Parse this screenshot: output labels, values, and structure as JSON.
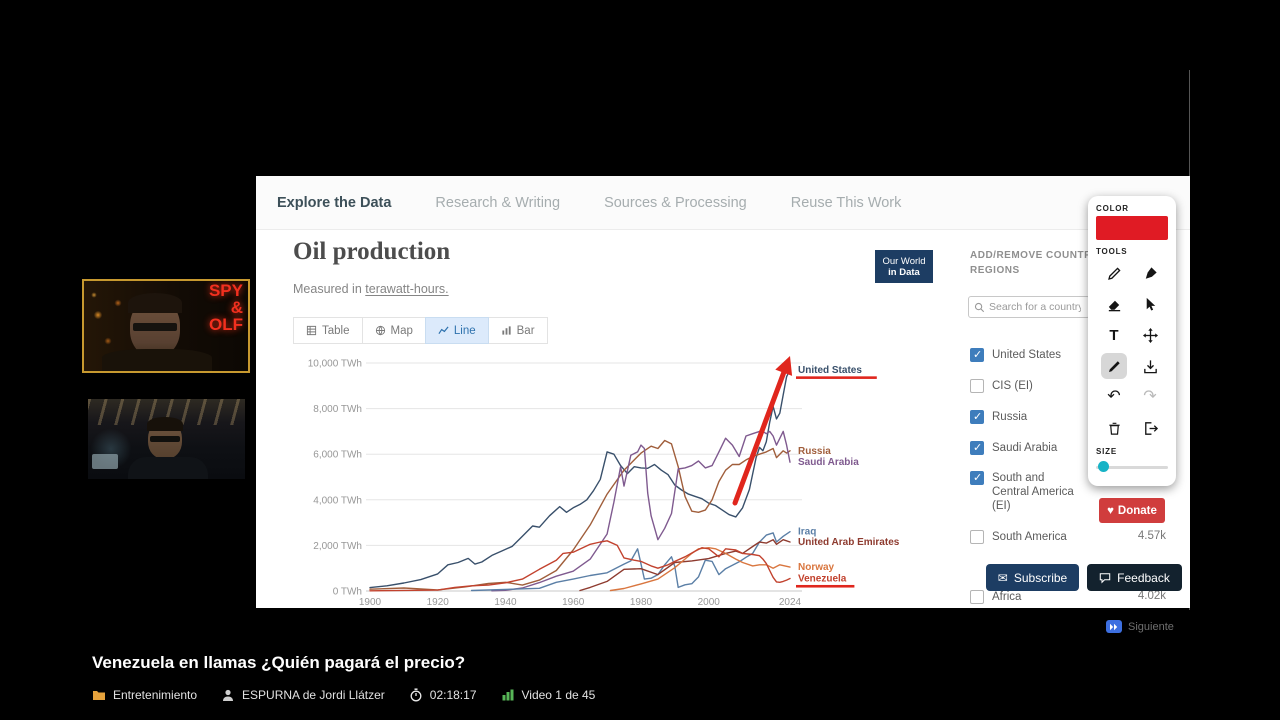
{
  "player": {
    "title": "Venezuela en llamas ¿Quién pagará el precio?",
    "next_label": "Siguiente",
    "meta": {
      "category": "Entretenimiento",
      "author": "ESPURNA de Jordi Llátzer",
      "time": "02:18:17",
      "video_index": "Video 1 de 45"
    }
  },
  "webcams": {
    "top_overlay_lines": [
      "SPY",
      "&",
      "OLF"
    ]
  },
  "owid": {
    "nav": [
      "Explore the Data",
      "Research & Writing",
      "Sources & Processing",
      "Reuse This Work"
    ],
    "title": "Oil production",
    "subtitle_prefix": "Measured in ",
    "subtitle_unit": "terawatt-hours.",
    "logo_lines": [
      "Our World",
      "in Data"
    ],
    "chart_tabs": [
      {
        "label": "Table",
        "active": false
      },
      {
        "label": "Map",
        "active": false
      },
      {
        "label": "Line",
        "active": true
      },
      {
        "label": "Bar",
        "active": false
      }
    ],
    "sidebar": {
      "header": "ADD/REMOVE COUNTRIES AND REGIONS",
      "search_placeholder": "Search for a country",
      "entities": [
        {
          "label": "United States",
          "checked": true
        },
        {
          "label": "CIS (EI)",
          "checked": false
        },
        {
          "label": "Russia",
          "checked": true
        },
        {
          "label": "Saudi Arabia",
          "checked": true
        },
        {
          "label": "South and Central America (EI)",
          "checked": true
        },
        {
          "label": "South America",
          "checked": false,
          "count": "4.57k"
        },
        {
          "label": "Africa",
          "checked": false,
          "count": "4.02k"
        }
      ],
      "donate_label": "Donate"
    },
    "footer": {
      "subscribe_label": "Subscribe",
      "feedback_label": "Feedback"
    }
  },
  "annotator": {
    "color_label": "COLOR",
    "tools_label": "TOOLS",
    "size_label": "SIZE",
    "color": "#e01b24",
    "text_tool_glyph": "T",
    "tools": [
      "pencil",
      "pen",
      "eraser",
      "cursor",
      "text",
      "move",
      "draw-line",
      "download",
      "undo",
      "redo",
      "trash",
      "exit"
    ]
  },
  "chart_data": {
    "type": "line",
    "title": "Oil production",
    "subtitle": "Measured in terawatt-hours",
    "ylabel": "TWh",
    "ylim": [
      0,
      10000
    ],
    "xlim": [
      1900,
      2024
    ],
    "yticks": [
      0,
      2000,
      4000,
      6000,
      8000,
      10000
    ],
    "ytick_labels": [
      "0 TWh",
      "2,000 TWh",
      "4,000 TWh",
      "6,000 TWh",
      "8,000 TWh",
      "10,000 TWh"
    ],
    "xticks": [
      1900,
      1920,
      1940,
      1960,
      1980,
      2000,
      2024
    ],
    "grid": true,
    "annotation": "hand-drawn red arrow pointing up along the United States surge; red underlines under United States and Venezuela labels",
    "series": [
      {
        "name": "United States",
        "color": "#39506b",
        "underline": true,
        "points": [
          [
            1900,
            150
          ],
          [
            1905,
            230
          ],
          [
            1910,
            350
          ],
          [
            1915,
            500
          ],
          [
            1920,
            750
          ],
          [
            1923,
            1150
          ],
          [
            1926,
            1250
          ],
          [
            1929,
            1430
          ],
          [
            1931,
            1180
          ],
          [
            1933,
            1270
          ],
          [
            1936,
            1560
          ],
          [
            1939,
            1760
          ],
          [
            1942,
            1960
          ],
          [
            1945,
            2400
          ],
          [
            1948,
            2850
          ],
          [
            1950,
            2800
          ],
          [
            1953,
            3300
          ],
          [
            1956,
            3700
          ],
          [
            1958,
            3450
          ],
          [
            1960,
            3650
          ],
          [
            1962,
            3800
          ],
          [
            1964,
            4000
          ],
          [
            1966,
            4400
          ],
          [
            1968,
            4900
          ],
          [
            1970,
            6100
          ],
          [
            1972,
            6000
          ],
          [
            1974,
            5500
          ],
          [
            1976,
            5150
          ],
          [
            1978,
            5450
          ],
          [
            1980,
            5400
          ],
          [
            1982,
            5380
          ],
          [
            1984,
            5550
          ],
          [
            1986,
            5300
          ],
          [
            1988,
            5100
          ],
          [
            1990,
            4650
          ],
          [
            1992,
            4430
          ],
          [
            1994,
            4250
          ],
          [
            1996,
            4150
          ],
          [
            1998,
            4050
          ],
          [
            2000,
            3850
          ],
          [
            2002,
            3750
          ],
          [
            2004,
            3550
          ],
          [
            2006,
            3350
          ],
          [
            2008,
            3250
          ],
          [
            2010,
            3650
          ],
          [
            2012,
            4450
          ],
          [
            2014,
            5850
          ],
          [
            2015,
            6300
          ],
          [
            2016,
            6150
          ],
          [
            2017,
            6550
          ],
          [
            2018,
            7400
          ],
          [
            2019,
            8100
          ],
          [
            2020,
            7550
          ],
          [
            2021,
            7800
          ],
          [
            2022,
            8600
          ],
          [
            2023,
            9400
          ],
          [
            2024,
            9700
          ]
        ]
      },
      {
        "name": "Russia",
        "color": "#a05e3b",
        "underline": false,
        "points": [
          [
            1900,
            80
          ],
          [
            1910,
            130
          ],
          [
            1920,
            50
          ],
          [
            1928,
            180
          ],
          [
            1935,
            330
          ],
          [
            1940,
            380
          ],
          [
            1945,
            260
          ],
          [
            1950,
            480
          ],
          [
            1955,
            900
          ],
          [
            1960,
            1800
          ],
          [
            1965,
            2900
          ],
          [
            1970,
            4250
          ],
          [
            1975,
            5300
          ],
          [
            1980,
            6050
          ],
          [
            1983,
            6350
          ],
          [
            1985,
            6250
          ],
          [
            1987,
            6600
          ],
          [
            1989,
            6450
          ],
          [
            1991,
            5450
          ],
          [
            1993,
            4150
          ],
          [
            1995,
            3500
          ],
          [
            1997,
            3450
          ],
          [
            1999,
            3550
          ],
          [
            2001,
            4000
          ],
          [
            2003,
            4800
          ],
          [
            2005,
            5300
          ],
          [
            2007,
            5550
          ],
          [
            2009,
            5550
          ],
          [
            2011,
            5750
          ],
          [
            2013,
            5900
          ],
          [
            2015,
            6000
          ],
          [
            2017,
            6100
          ],
          [
            2019,
            6250
          ],
          [
            2020,
            5850
          ],
          [
            2021,
            6000
          ],
          [
            2022,
            6150
          ],
          [
            2023,
            6050
          ],
          [
            2024,
            6150
          ]
        ]
      },
      {
        "name": "Saudi Arabia",
        "color": "#7f5a8f",
        "underline": false,
        "points": [
          [
            1936,
            10
          ],
          [
            1940,
            30
          ],
          [
            1945,
            130
          ],
          [
            1950,
            370
          ],
          [
            1955,
            650
          ],
          [
            1960,
            870
          ],
          [
            1965,
            1400
          ],
          [
            1970,
            2500
          ],
          [
            1972,
            3900
          ],
          [
            1974,
            5450
          ],
          [
            1975,
            4600
          ],
          [
            1977,
            5950
          ],
          [
            1979,
            6100
          ],
          [
            1980,
            6400
          ],
          [
            1981,
            6250
          ],
          [
            1982,
            4300
          ],
          [
            1983,
            3300
          ],
          [
            1985,
            2250
          ],
          [
            1987,
            2750
          ],
          [
            1989,
            3400
          ],
          [
            1991,
            5350
          ],
          [
            1993,
            5400
          ],
          [
            1995,
            5500
          ],
          [
            1997,
            5700
          ],
          [
            1999,
            5400
          ],
          [
            2001,
            5500
          ],
          [
            2003,
            6100
          ],
          [
            2005,
            6700
          ],
          [
            2007,
            6400
          ],
          [
            2009,
            5900
          ],
          [
            2011,
            6800
          ],
          [
            2013,
            6900
          ],
          [
            2015,
            7000
          ],
          [
            2016,
            7000
          ],
          [
            2017,
            6900
          ],
          [
            2018,
            7000
          ],
          [
            2019,
            6800
          ],
          [
            2020,
            6400
          ],
          [
            2022,
            7000
          ],
          [
            2023,
            6400
          ],
          [
            2024,
            5650
          ]
        ]
      },
      {
        "name": "Iraq",
        "color": "#5b7fa6",
        "underline": false,
        "points": [
          [
            1930,
            20
          ],
          [
            1950,
            120
          ],
          [
            1955,
            380
          ],
          [
            1960,
            520
          ],
          [
            1965,
            680
          ],
          [
            1970,
            800
          ],
          [
            1975,
            1180
          ],
          [
            1977,
            1320
          ],
          [
            1979,
            1850
          ],
          [
            1981,
            520
          ],
          [
            1983,
            560
          ],
          [
            1985,
            720
          ],
          [
            1987,
            1150
          ],
          [
            1989,
            1500
          ],
          [
            1990,
            1080
          ],
          [
            1991,
            160
          ],
          [
            1993,
            270
          ],
          [
            1995,
            320
          ],
          [
            1997,
            620
          ],
          [
            1999,
            1350
          ],
          [
            2001,
            1300
          ],
          [
            2003,
            720
          ],
          [
            2005,
            980
          ],
          [
            2007,
            1130
          ],
          [
            2009,
            1280
          ],
          [
            2011,
            1480
          ],
          [
            2013,
            1650
          ],
          [
            2015,
            2150
          ],
          [
            2017,
            2450
          ],
          [
            2019,
            2550
          ],
          [
            2020,
            2150
          ],
          [
            2022,
            2400
          ],
          [
            2024,
            2600
          ]
        ]
      },
      {
        "name": "United Arab Emirates",
        "color": "#8e3b2f",
        "underline": false,
        "points": [
          [
            1962,
            20
          ],
          [
            1965,
            160
          ],
          [
            1970,
            420
          ],
          [
            1975,
            950
          ],
          [
            1980,
            980
          ],
          [
            1985,
            720
          ],
          [
            1990,
            1250
          ],
          [
            1995,
            1320
          ],
          [
            2000,
            1420
          ],
          [
            2005,
            1650
          ],
          [
            2008,
            1750
          ],
          [
            2010,
            1650
          ],
          [
            2013,
            1950
          ],
          [
            2015,
            2150
          ],
          [
            2017,
            2100
          ],
          [
            2019,
            2250
          ],
          [
            2020,
            2050
          ],
          [
            2022,
            2250
          ],
          [
            2024,
            2150
          ]
        ]
      },
      {
        "name": "Norway",
        "color": "#d9763f",
        "underline": false,
        "points": [
          [
            1971,
            20
          ],
          [
            1975,
            110
          ],
          [
            1980,
            310
          ],
          [
            1985,
            520
          ],
          [
            1990,
            1020
          ],
          [
            1995,
            1650
          ],
          [
            1997,
            1850
          ],
          [
            2000,
            1900
          ],
          [
            2002,
            1850
          ],
          [
            2005,
            1650
          ],
          [
            2008,
            1400
          ],
          [
            2010,
            1250
          ],
          [
            2013,
            1100
          ],
          [
            2015,
            1150
          ],
          [
            2017,
            1150
          ],
          [
            2019,
            1000
          ],
          [
            2021,
            1150
          ],
          [
            2024,
            1050
          ]
        ]
      },
      {
        "name": "Venezuela",
        "color": "#c2422e",
        "underline": true,
        "points": [
          [
            1900,
            10
          ],
          [
            1920,
            40
          ],
          [
            1925,
            160
          ],
          [
            1930,
            230
          ],
          [
            1935,
            260
          ],
          [
            1940,
            360
          ],
          [
            1945,
            520
          ],
          [
            1950,
            950
          ],
          [
            1955,
            1350
          ],
          [
            1957,
            1650
          ],
          [
            1960,
            1700
          ],
          [
            1965,
            2050
          ],
          [
            1968,
            2150
          ],
          [
            1970,
            2200
          ],
          [
            1973,
            2000
          ],
          [
            1975,
            1450
          ],
          [
            1978,
            1350
          ],
          [
            1980,
            1300
          ],
          [
            1983,
            1100
          ],
          [
            1985,
            1000
          ],
          [
            1988,
            1150
          ],
          [
            1990,
            1300
          ],
          [
            1993,
            1500
          ],
          [
            1996,
            1750
          ],
          [
            1998,
            1900
          ],
          [
            2000,
            1850
          ],
          [
            2003,
            1500
          ],
          [
            2005,
            1850
          ],
          [
            2008,
            1800
          ],
          [
            2010,
            1650
          ],
          [
            2013,
            1600
          ],
          [
            2015,
            1550
          ],
          [
            2016,
            1400
          ],
          [
            2017,
            1200
          ],
          [
            2018,
            900
          ],
          [
            2019,
            600
          ],
          [
            2020,
            400
          ],
          [
            2021,
            380
          ],
          [
            2022,
            420
          ],
          [
            2023,
            480
          ],
          [
            2024,
            550
          ]
        ]
      }
    ]
  }
}
